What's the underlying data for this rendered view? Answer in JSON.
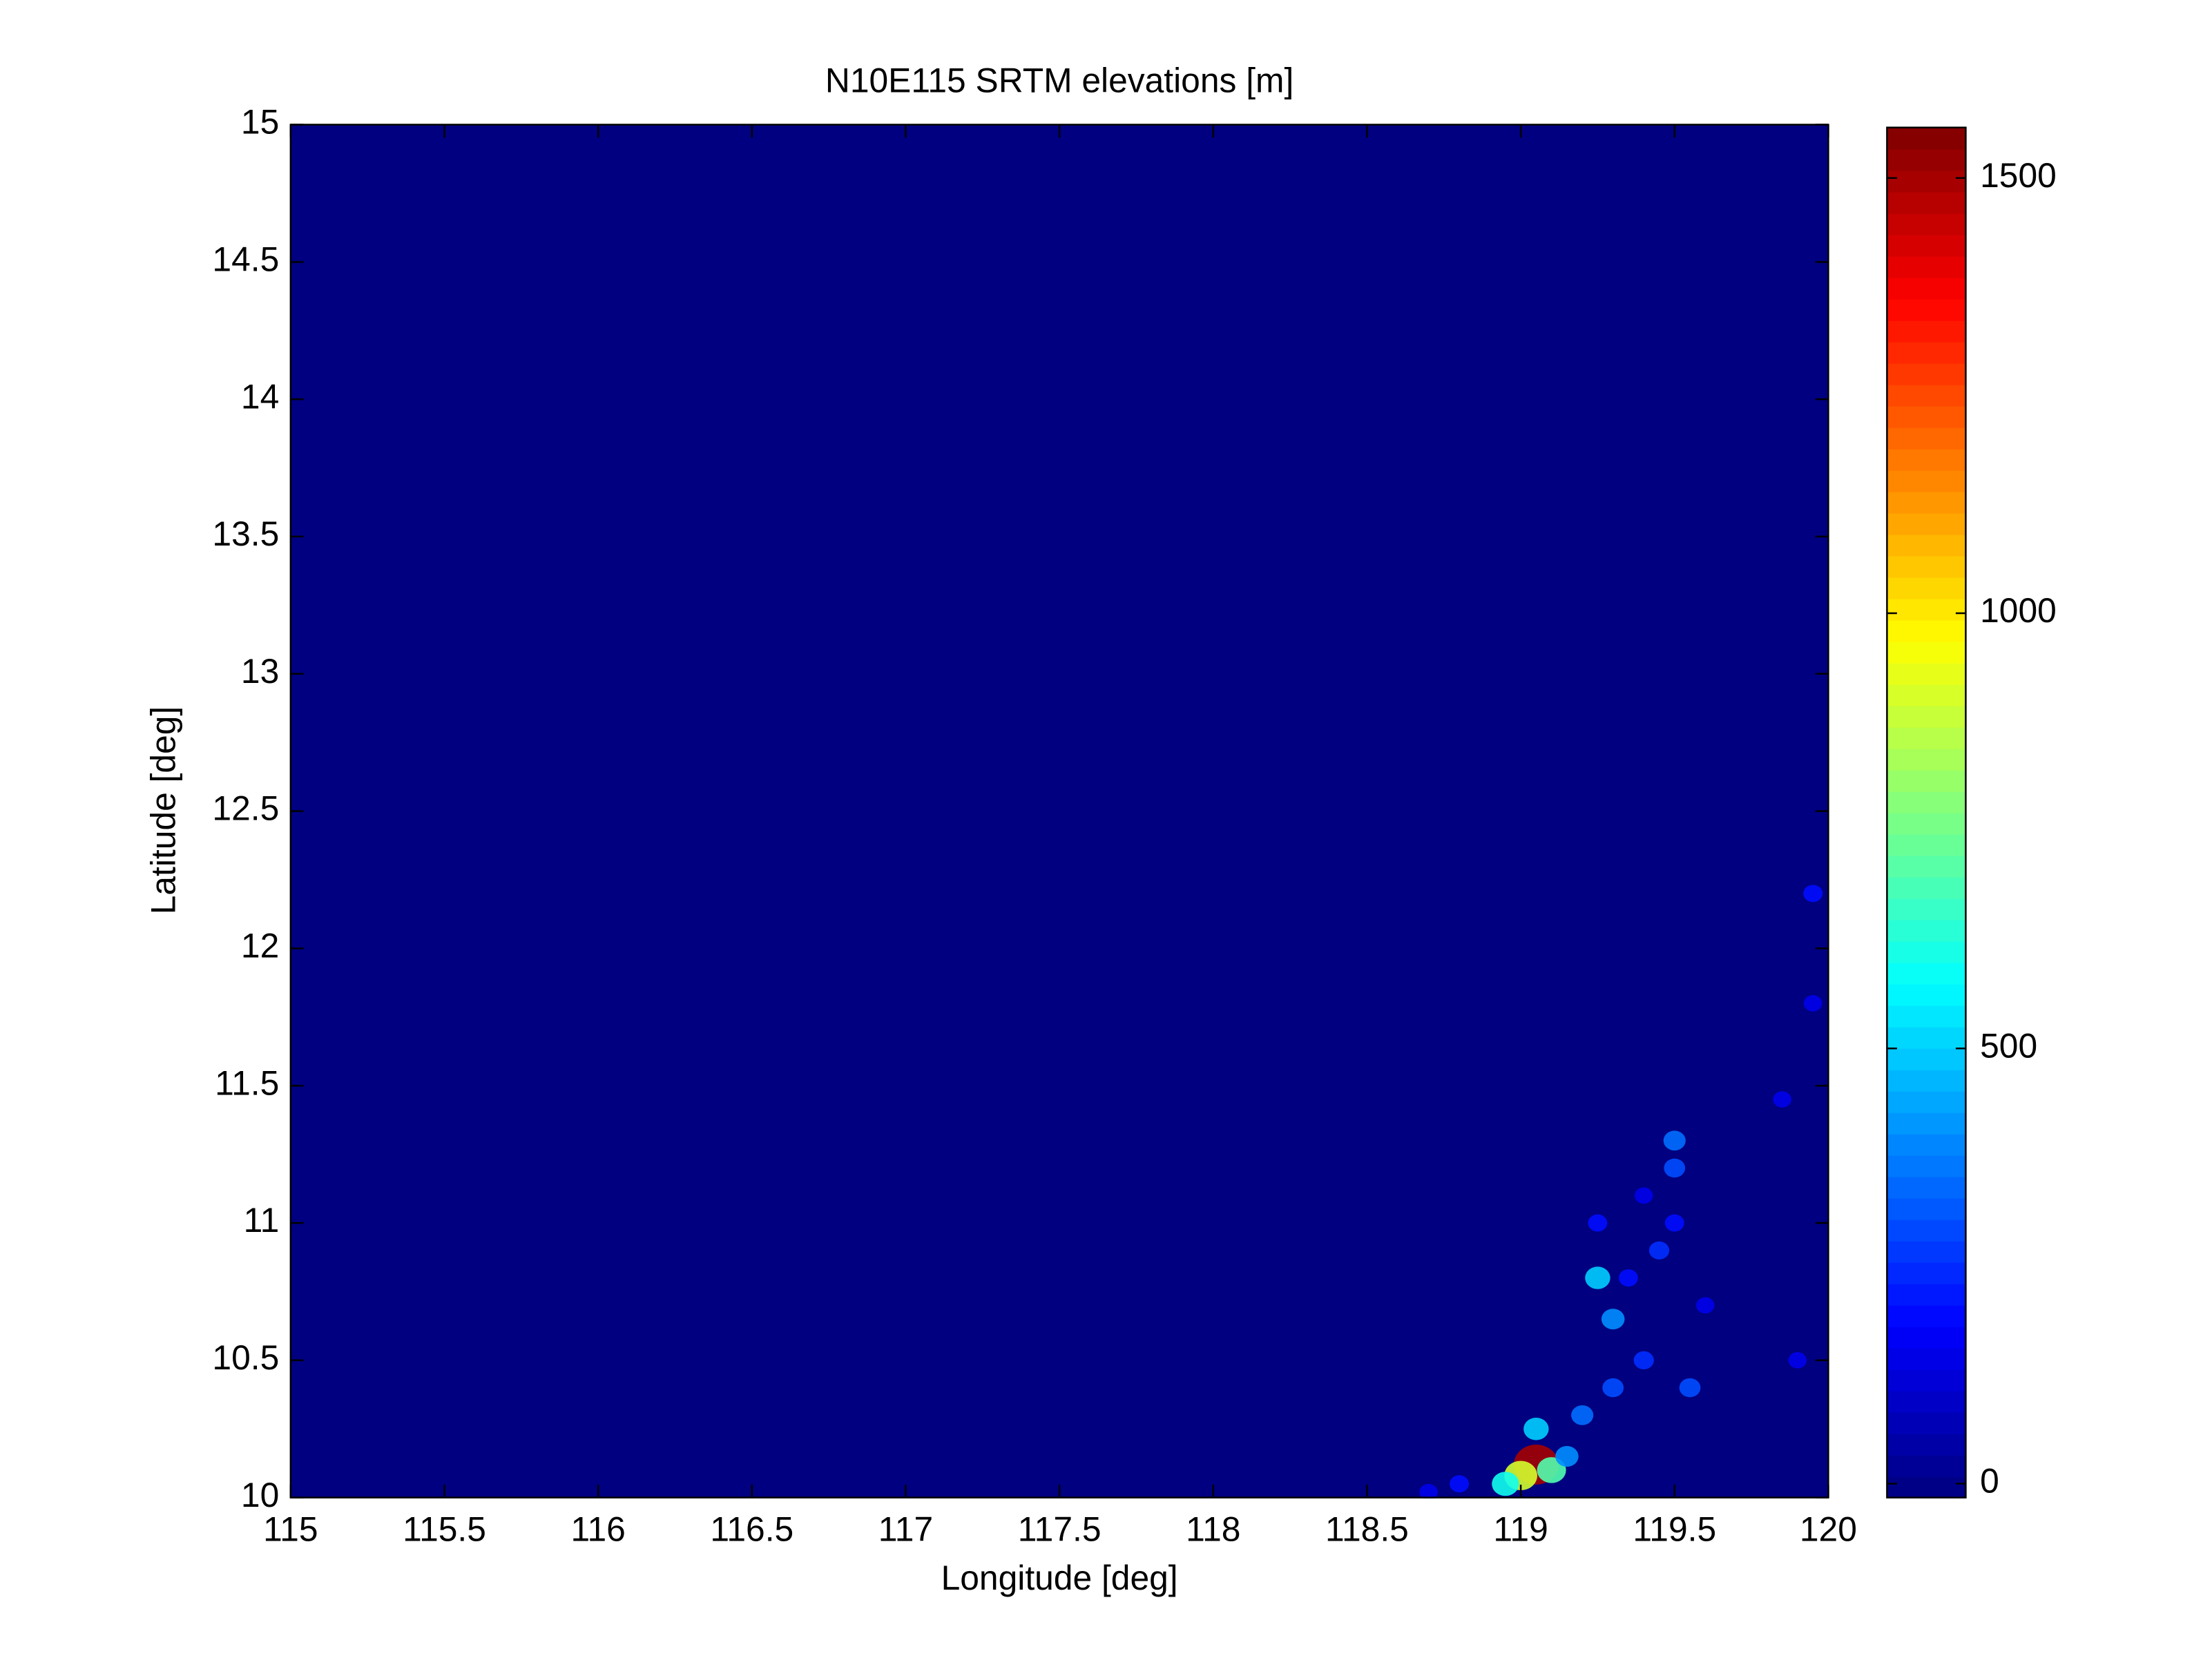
{
  "chart_data": {
    "type": "heatmap",
    "title": "N10E115 SRTM elevations [m]",
    "xlabel": "Longitude [deg]",
    "ylabel": "Latitude [deg]",
    "xlim": [
      115,
      120
    ],
    "ylim": [
      10,
      15
    ],
    "xticks": [
      115,
      115.5,
      116,
      116.5,
      117,
      117.5,
      118,
      118.5,
      119,
      119.5,
      120
    ],
    "yticks": [
      10,
      10.5,
      11,
      11.5,
      12,
      12.5,
      13,
      13.5,
      14,
      14.5,
      15
    ],
    "colormap": "jet",
    "clim": [
      -16,
      1558
    ],
    "cticks": [
      0,
      500,
      1000,
      1500
    ],
    "x": [
      119.05,
      119.0,
      119.1,
      118.95,
      119.15,
      119.05,
      119.2,
      119.3,
      119.4,
      119.3,
      119.35,
      119.45,
      119.5,
      119.5,
      119.5,
      119.4,
      119.25,
      119.55,
      119.9,
      119.85,
      119.95,
      119.95,
      118.8,
      118.7,
      119.6,
      119.25
    ],
    "y": [
      10.12,
      10.08,
      10.1,
      10.05,
      10.15,
      10.25,
      10.3,
      10.4,
      10.5,
      10.65,
      10.8,
      10.9,
      11.0,
      11.2,
      11.3,
      11.1,
      10.8,
      10.4,
      10.5,
      11.45,
      11.8,
      12.2,
      10.05,
      10.02,
      10.7,
      11.0
    ],
    "values": [
      1500,
      900,
      700,
      600,
      400,
      500,
      350,
      300,
      250,
      400,
      200,
      250,
      200,
      300,
      350,
      150,
      500,
      300,
      150,
      150,
      150,
      200,
      200,
      150,
      150,
      200
    ]
  }
}
